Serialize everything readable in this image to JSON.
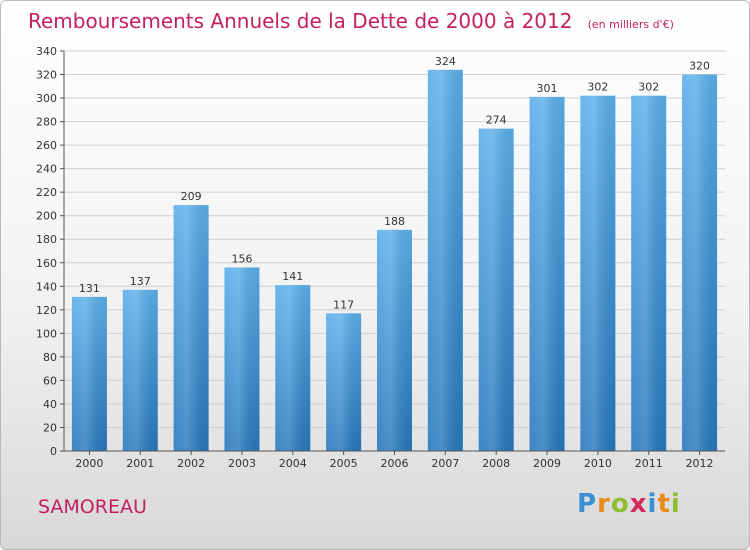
{
  "header": {
    "title": "Remboursements Annuels de la Dette de 2000 à 2012",
    "subtitle": "(en milliers d'€)"
  },
  "footer": {
    "commune": "SAMOREAU",
    "logo_letters": [
      "P",
      "r",
      "o",
      "x",
      "i",
      "t",
      "i"
    ],
    "logo_colors": [
      "#3a8fd4",
      "#e98a1a",
      "#8cbf2e",
      "#d42a5a",
      "#3a8fd4",
      "#e98a1a",
      "#8cbf2e"
    ]
  },
  "colors": {
    "bar_top": "#5aafea",
    "bar_bottom": "#2677bd",
    "text_accent": "#c41f5f",
    "grid": "#d0d0d0"
  },
  "chart_data": {
    "type": "bar",
    "categories": [
      "2000",
      "2001",
      "2002",
      "2003",
      "2004",
      "2005",
      "2006",
      "2007",
      "2008",
      "2009",
      "2010",
      "2011",
      "2012"
    ],
    "values": [
      131,
      137,
      209,
      156,
      141,
      117,
      188,
      324,
      274,
      301,
      302,
      302,
      320
    ],
    "value_labels": [
      "131",
      "137",
      "209",
      "156",
      "141",
      "117",
      "188",
      "324",
      "274",
      "301",
      "302",
      "302",
      "320"
    ],
    "yticks": [
      "0",
      "20",
      "40",
      "60",
      "80",
      "100",
      "120",
      "140",
      "160",
      "180",
      "200",
      "220",
      "240",
      "260",
      "280",
      "300",
      "320",
      "340"
    ],
    "ylim": [
      0,
      340
    ],
    "grid": true,
    "xlabel": "",
    "ylabel": ""
  }
}
